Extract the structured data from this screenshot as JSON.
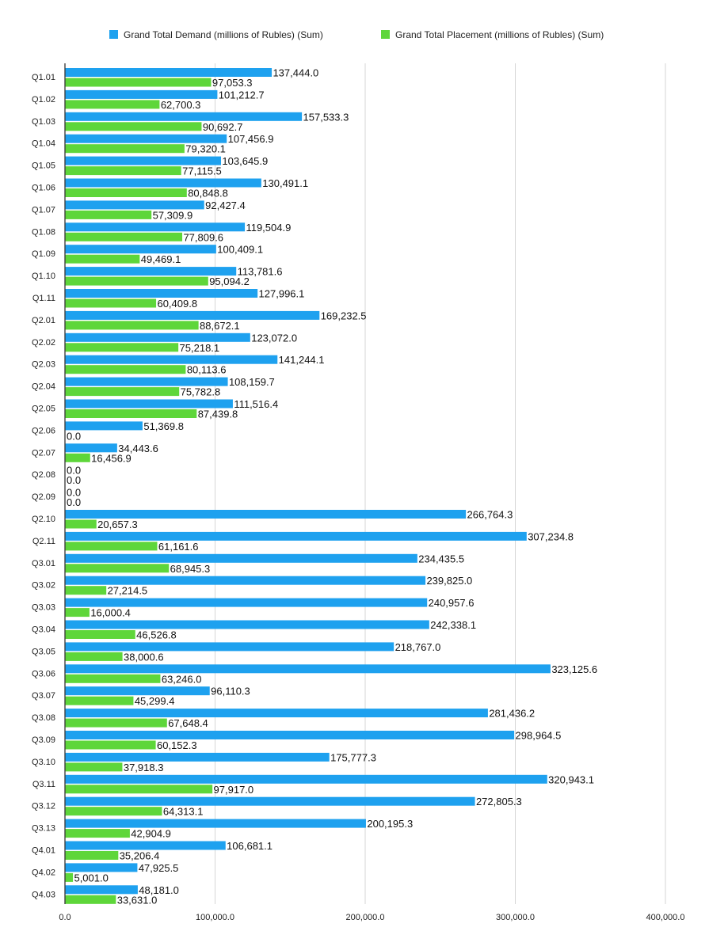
{
  "chart_data": {
    "type": "bar",
    "orientation": "horizontal",
    "title": "",
    "xlabel": "",
    "ylabel": "",
    "xlim": [
      0,
      400000
    ],
    "ticks": [
      0,
      100000,
      200000,
      300000,
      400000
    ],
    "tick_labels": [
      "0.0",
      "100,000.0",
      "200,000.0",
      "300,000.0",
      "400,000.0"
    ],
    "grid": true,
    "legend_position": "top",
    "categories": [
      "Q1.01",
      "Q1.02",
      "Q1.03",
      "Q1.04",
      "Q1.05",
      "Q1.06",
      "Q1.07",
      "Q1.08",
      "Q1.09",
      "Q1.10",
      "Q1.11",
      "Q2.01",
      "Q2.02",
      "Q2.03",
      "Q2.04",
      "Q2.05",
      "Q2.06",
      "Q2.07",
      "Q2.08",
      "Q2.09",
      "Q2.10",
      "Q2.11",
      "Q3.01",
      "Q3.02",
      "Q3.03",
      "Q3.04",
      "Q3.05",
      "Q3.06",
      "Q3.07",
      "Q3.08",
      "Q3.09",
      "Q3.10",
      "Q3.11",
      "Q3.12",
      "Q3.13",
      "Q4.01",
      "Q4.02",
      "Q4.03"
    ],
    "series": [
      {
        "name": "Grand Total Demand (millions of Rubles) (Sum)",
        "color": "#1ea1ef",
        "values": [
          137444.0,
          101212.7,
          157533.3,
          107456.9,
          103645.9,
          130491.1,
          92427.4,
          119504.9,
          100409.1,
          113781.6,
          127996.1,
          169232.5,
          123072.0,
          141244.1,
          108159.7,
          111516.4,
          51369.8,
          34443.6,
          0.0,
          0.0,
          266764.3,
          307234.8,
          234435.5,
          239825.0,
          240957.6,
          242338.1,
          218767.0,
          323125.6,
          96110.3,
          281436.2,
          298964.5,
          175777.3,
          320943.1,
          272805.3,
          200195.3,
          106681.1,
          47925.5,
          48181.0
        ],
        "labels": [
          "137,444.0",
          "101,212.7",
          "157,533.3",
          "107,456.9",
          "103,645.9",
          "130,491.1",
          "92,427.4",
          "119,504.9",
          "100,409.1",
          "113,781.6",
          "127,996.1",
          "169,232.5",
          "123,072.0",
          "141,244.1",
          "108,159.7",
          "111,516.4",
          "51,369.8",
          "34,443.6",
          "0.0",
          "0.0",
          "266,764.3",
          "307,234.8",
          "234,435.5",
          "239,825.0",
          "240,957.6",
          "242,338.1",
          "218,767.0",
          "323,125.6",
          "96,110.3",
          "281,436.2",
          "298,964.5",
          "175,777.3",
          "320,943.1",
          "272,805.3",
          "200,195.3",
          "106,681.1",
          "47,925.5",
          "48,181.0"
        ]
      },
      {
        "name": "Grand Total Placement (millions of Rubles) (Sum)",
        "color": "#5ed63a",
        "values": [
          97053.3,
          62700.3,
          90692.7,
          79320.1,
          77115.5,
          80848.8,
          57309.9,
          77809.6,
          49469.1,
          95094.2,
          60409.8,
          88672.1,
          75218.1,
          80113.6,
          75782.8,
          87439.8,
          0.0,
          16456.9,
          0.0,
          0.0,
          20657.3,
          61161.6,
          68945.3,
          27214.5,
          16000.4,
          46526.8,
          38000.6,
          63246.0,
          45299.4,
          67648.4,
          60152.3,
          37918.3,
          97917.0,
          64313.1,
          42904.9,
          35206.4,
          5001.0,
          33631.0
        ],
        "labels": [
          "97,053.3",
          "62,700.3",
          "90,692.7",
          "79,320.1",
          "77,115.5",
          "80,848.8",
          "57,309.9",
          "77,809.6",
          "49,469.1",
          "95,094.2",
          "60,409.8",
          "88,672.1",
          "75,218.1",
          "80,113.6",
          "75,782.8",
          "87,439.8",
          "0.0",
          "16,456.9",
          "0.0",
          "0.0",
          "20,657.3",
          "61,161.6",
          "68,945.3",
          "27,214.5",
          "16,000.4",
          "46,526.8",
          "38,000.6",
          "63,246.0",
          "45,299.4",
          "67,648.4",
          "60,152.3",
          "37,918.3",
          "97,917.0",
          "64,313.1",
          "42,904.9",
          "35,206.4",
          "5,001.0",
          "33,631.0"
        ]
      }
    ]
  }
}
